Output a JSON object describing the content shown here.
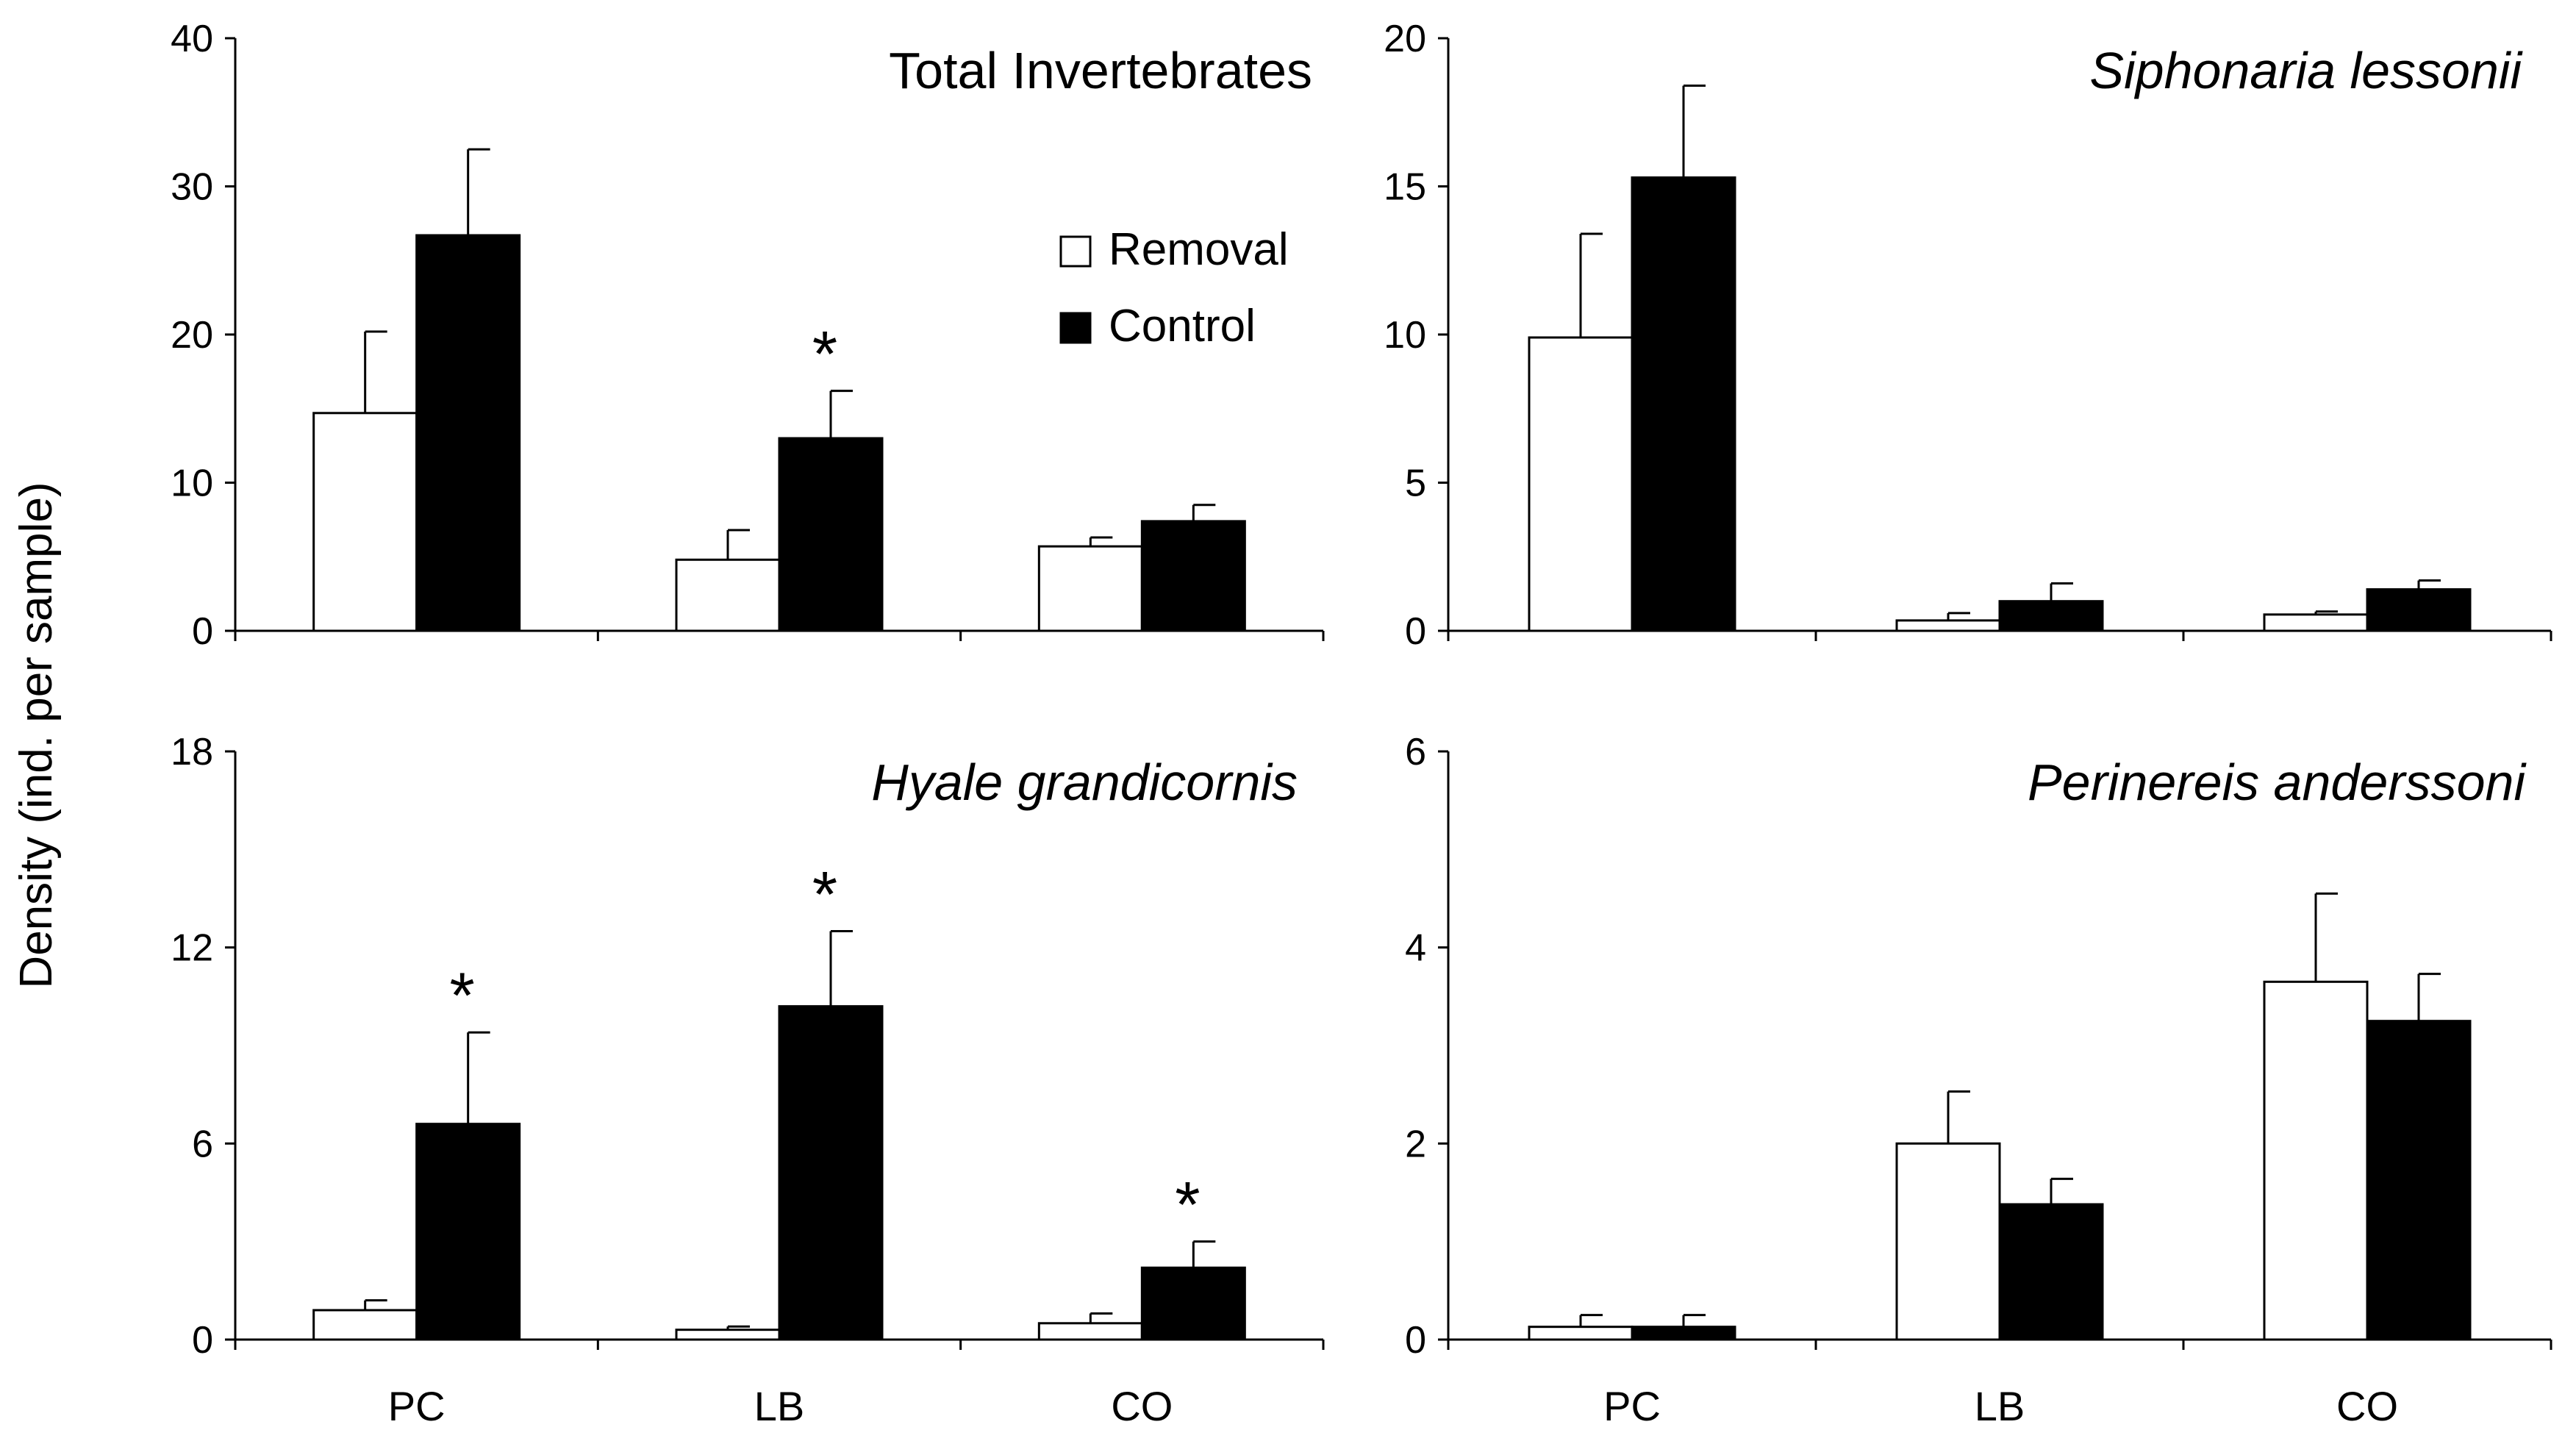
{
  "colors": {
    "removal": "#ffffff",
    "control": "#000000",
    "axis": "#000000"
  },
  "chart_data": {
    "type": "bar",
    "ylabel": "Density (ind. per sample)",
    "categories": [
      "PC",
      "LB",
      "CO"
    ],
    "legend": [
      {
        "name": "Removal",
        "color": "#ffffff"
      },
      {
        "name": "Control",
        "color": "#000000"
      }
    ],
    "panels": [
      {
        "id": "total",
        "title": "Total Invertebrates",
        "italic": false,
        "ylim": [
          0,
          40
        ],
        "yticks": [
          "0",
          "10",
          "20",
          "30",
          "40"
        ],
        "series": [
          {
            "name": "Removal",
            "values": [
              14.7,
              4.8,
              5.7
            ],
            "errors": [
              5.5,
              2.0,
              0.6
            ]
          },
          {
            "name": "Control",
            "values": [
              26.7,
              13.0,
              7.4
            ],
            "errors": [
              5.8,
              3.2,
              1.1
            ]
          }
        ],
        "significant": [
          false,
          true,
          false
        ],
        "star": "*"
      },
      {
        "id": "siphonaria",
        "title": "Siphonaria lessonii",
        "italic": true,
        "ylim": [
          0,
          20
        ],
        "yticks": [
          "0",
          "5",
          "10",
          "15",
          "20"
        ],
        "series": [
          {
            "name": "Removal",
            "values": [
              9.9,
              0.35,
              0.55
            ],
            "errors": [
              3.5,
              0.25,
              0.1
            ]
          },
          {
            "name": "Control",
            "values": [
              15.3,
              1.0,
              1.4
            ],
            "errors": [
              3.1,
              0.6,
              0.3
            ]
          }
        ],
        "significant": [
          false,
          false,
          false
        ],
        "star": "*"
      },
      {
        "id": "hyale",
        "title": "Hyale grandicornis",
        "italic": true,
        "ylim": [
          0,
          18
        ],
        "yticks": [
          "0",
          "6",
          "12",
          "18"
        ],
        "series": [
          {
            "name": "Removal",
            "values": [
              0.9,
              0.3,
              0.5
            ],
            "errors": [
              0.3,
              0.1,
              0.3
            ]
          },
          {
            "name": "Control",
            "values": [
              6.6,
              10.2,
              2.2
            ],
            "errors": [
              2.8,
              2.3,
              0.8
            ]
          }
        ],
        "significant": [
          true,
          true,
          true
        ],
        "star": "*"
      },
      {
        "id": "perinereis",
        "title": "Perinereis anderssoni",
        "italic": true,
        "ylim": [
          0,
          6
        ],
        "yticks": [
          "0",
          "2",
          "4",
          "6"
        ],
        "series": [
          {
            "name": "Removal",
            "values": [
              0.13,
              2.0,
              3.65
            ],
            "errors": [
              0.12,
              0.53,
              0.9
            ]
          },
          {
            "name": "Control",
            "values": [
              0.13,
              1.38,
              3.25
            ],
            "errors": [
              0.12,
              0.26,
              0.48
            ]
          }
        ],
        "significant": [
          false,
          false,
          false
        ],
        "star": "*"
      }
    ]
  }
}
